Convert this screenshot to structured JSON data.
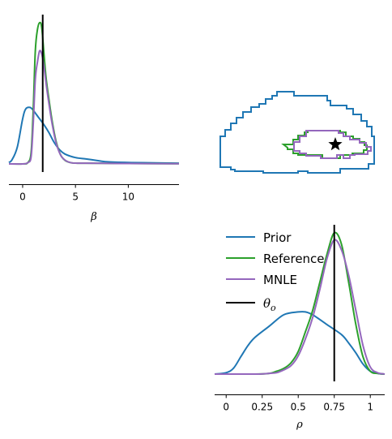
{
  "colors": {
    "prior": "#1f77b4",
    "reference": "#2ca02c",
    "mnle": "#9467bd",
    "theta": "#000000"
  },
  "chart_data": [
    {
      "type": "line",
      "panel": "beta-marginal",
      "xlabel": "β",
      "xticks": [
        0,
        5,
        10
      ],
      "xtick_labels": [
        "0",
        "5",
        "10"
      ],
      "xlim": [
        -1.3,
        14.8
      ],
      "ylim": [
        0,
        1.0
      ],
      "grid": false,
      "theta_o": 1.9,
      "series": [
        {
          "name": "Prior",
          "color": "#1f77b4",
          "x": [
            -1.3,
            -1,
            -0.5,
            0,
            0.3,
            0.7,
            1,
            1.5,
            2,
            2.5,
            3,
            3.5,
            4,
            5,
            6,
            7,
            8,
            10,
            12,
            14.8
          ],
          "y": [
            0.01,
            0.03,
            0.12,
            0.32,
            0.39,
            0.4,
            0.38,
            0.33,
            0.28,
            0.22,
            0.15,
            0.1,
            0.07,
            0.045,
            0.035,
            0.025,
            0.015,
            0.01,
            0.008,
            0.005
          ]
        },
        {
          "name": "Reference",
          "color": "#2ca02c",
          "x": [
            -1.3,
            0,
            0.5,
            0.8,
            1.0,
            1.2,
            1.4,
            1.6,
            1.8,
            2.0,
            2.2,
            2.5,
            2.8,
            3.2,
            3.7,
            4.5,
            6,
            10,
            14.8
          ],
          "y": [
            0.0,
            0.0,
            0.01,
            0.08,
            0.38,
            0.8,
            0.95,
            1.0,
            0.97,
            0.8,
            0.62,
            0.45,
            0.3,
            0.15,
            0.05,
            0.01,
            0.005,
            0.003,
            0.002
          ]
        },
        {
          "name": "MNLE",
          "color": "#9467bd",
          "x": [
            -1.3,
            0,
            0.5,
            0.8,
            1.0,
            1.2,
            1.4,
            1.6,
            1.8,
            2.0,
            2.2,
            2.5,
            2.8,
            3.2,
            3.7,
            4.5,
            6,
            10,
            14.8
          ],
          "y": [
            0.0,
            0.0,
            0.01,
            0.05,
            0.28,
            0.6,
            0.72,
            0.8,
            0.78,
            0.7,
            0.58,
            0.42,
            0.28,
            0.14,
            0.05,
            0.01,
            0.005,
            0.003,
            0.002
          ]
        }
      ]
    },
    {
      "type": "contour",
      "panel": "joint-beta-rho",
      "xlim": [
        -1.3,
        14.8
      ],
      "ylim": [
        0,
        1
      ],
      "theta_o": {
        "beta": 1.9,
        "rho": 0.75
      }
    },
    {
      "type": "line",
      "panel": "rho-marginal",
      "xlabel": "ρ",
      "xticks": [
        0,
        0.25,
        0.5,
        0.75,
        1
      ],
      "xtick_labels": [
        "0",
        "0.25",
        "0.5",
        "0.75",
        "1"
      ],
      "xlim": [
        -0.08,
        1.1
      ],
      "ylim": [
        0,
        1.0
      ],
      "grid": false,
      "theta_o": 0.75,
      "legend_position": "upper-left",
      "series": [
        {
          "name": "Prior",
          "color": "#1f77b4",
          "x": [
            -0.08,
            0,
            0.05,
            0.1,
            0.15,
            0.2,
            0.3,
            0.4,
            0.5,
            0.55,
            0.6,
            0.7,
            0.8,
            0.85,
            0.9,
            0.95,
            1.0,
            1.05,
            1.1
          ],
          "y": [
            0.0,
            0.01,
            0.04,
            0.12,
            0.2,
            0.26,
            0.34,
            0.42,
            0.44,
            0.44,
            0.42,
            0.35,
            0.28,
            0.22,
            0.15,
            0.07,
            0.02,
            0.005,
            0.0
          ]
        },
        {
          "name": "Reference",
          "color": "#2ca02c",
          "x": [
            -0.08,
            0.2,
            0.3,
            0.35,
            0.4,
            0.45,
            0.5,
            0.55,
            0.6,
            0.65,
            0.7,
            0.75,
            0.8,
            0.85,
            0.9,
            0.95,
            1.0,
            1.05,
            1.1
          ],
          "y": [
            0.0,
            0.0,
            0.005,
            0.02,
            0.04,
            0.08,
            0.16,
            0.3,
            0.45,
            0.65,
            0.85,
            1.0,
            0.92,
            0.65,
            0.35,
            0.12,
            0.02,
            0.005,
            0.0
          ]
        },
        {
          "name": "MNLE",
          "color": "#9467bd",
          "x": [
            -0.08,
            0.2,
            0.3,
            0.35,
            0.4,
            0.45,
            0.5,
            0.55,
            0.6,
            0.65,
            0.7,
            0.75,
            0.8,
            0.85,
            0.9,
            0.95,
            1.0,
            1.05,
            1.1
          ],
          "y": [
            0.0,
            0.0,
            0.005,
            0.01,
            0.03,
            0.06,
            0.13,
            0.25,
            0.4,
            0.6,
            0.82,
            0.95,
            0.88,
            0.7,
            0.45,
            0.2,
            0.05,
            0.01,
            0.0
          ]
        }
      ]
    }
  ],
  "legend": {
    "entries": [
      {
        "label": "Prior"
      },
      {
        "label": "Reference"
      },
      {
        "label": "MNLE"
      }
    ],
    "theta_symbol": "θ",
    "theta_subscript": "o"
  }
}
